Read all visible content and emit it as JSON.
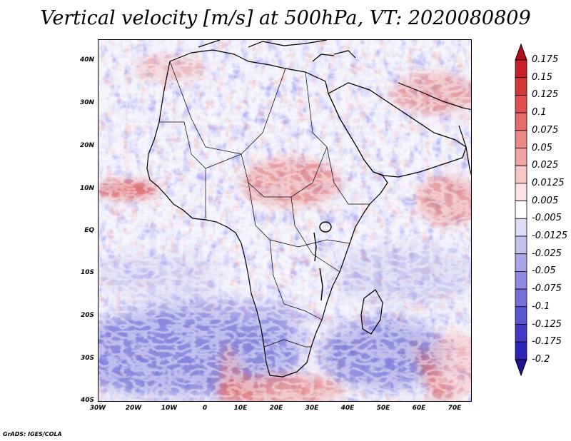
{
  "title": "Vertical velocity [m/s] at 500hPa, VT: 2020080809",
  "credit": "GrADS: IGES/COLA",
  "axes": {
    "lat_labels": [
      "40N",
      "30N",
      "20N",
      "10N",
      "EQ",
      "10S",
      "20S",
      "30S",
      "40S"
    ],
    "lon_labels": [
      "30W",
      "20W",
      "10W",
      "0",
      "10E",
      "20E",
      "30E",
      "40E",
      "50E",
      "60E",
      "70E"
    ]
  },
  "colorbar": {
    "labels": [
      "0.175",
      "0.15",
      "0.125",
      "0.1",
      "0.075",
      "0.05",
      "0.025",
      "0.0125",
      "0.005",
      "-0.005",
      "-0.0125",
      "-0.025",
      "-0.05",
      "-0.075",
      "-0.1",
      "-0.125",
      "-0.175",
      "-0.2"
    ],
    "colors": [
      "#b40f1e",
      "#c81e28",
      "#d73737",
      "#e05050",
      "#e66c6c",
      "#ec8888",
      "#f2a5a5",
      "#f7c6c6",
      "#fbe3e3",
      "#ffffff",
      "#dddcf5",
      "#c3c2ee",
      "#a8a6e6",
      "#8e8be0",
      "#7370d9",
      "#5a55d1",
      "#403ac6",
      "#2c24b8",
      "#1f168f"
    ]
  },
  "field": {
    "strong_ascent": [
      "itcz-west-atlantic",
      "sudan-ethiopia",
      "arabian-sea",
      "iran-plateau",
      "south-africa-coast",
      "mozambique-channel-tail"
    ],
    "strong_descent": [
      "south-atlantic-high",
      "south-indian-high",
      "namibia-plume"
    ]
  }
}
